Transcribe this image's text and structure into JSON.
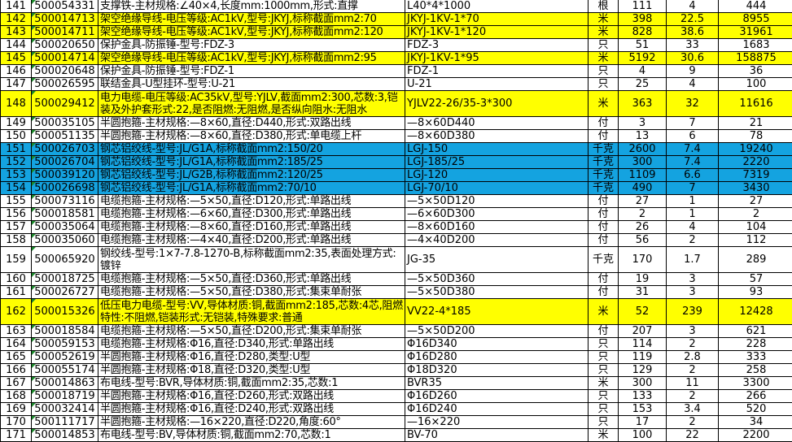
{
  "colors": {
    "yellow_highlight": "#ffff00",
    "blue_highlight": "#14a3e0"
  },
  "rows": [
    {
      "no": "141",
      "code": "500054331",
      "desc": "支撑铁-主材规格:∠40×4,长度mm:1000mm,形式:直撑",
      "spec": "L40*4*1000",
      "unit": "根",
      "qty": "111",
      "price": "4",
      "total": "444",
      "hl": ""
    },
    {
      "no": "142",
      "code": "500014713",
      "desc": "架空绝缘导线-电压等级:AC1kV,型号:JKYJ,标称截面mm2:70",
      "spec": "JKYJ-1KV-1*70",
      "unit": "米",
      "qty": "398",
      "price": "22.5",
      "total": "8955",
      "hl": "yellow"
    },
    {
      "no": "143",
      "code": "500014711",
      "desc": "架空绝缘导线-电压等级:AC1kV,型号:JKYJ,标称截面mm2:120",
      "spec": "JKYJ-1KV-1*120",
      "unit": "米",
      "qty": "828",
      "price": "38.6",
      "total": "31961",
      "hl": "yellow"
    },
    {
      "no": "144",
      "code": "500020650",
      "desc": "保护金具-防振锤-型号:FDZ-3",
      "spec": "FDZ-3",
      "unit": "只",
      "qty": "51",
      "price": "33",
      "total": "1683",
      "hl": ""
    },
    {
      "no": "145",
      "code": "500014714",
      "desc": "架空绝缘导线-电压等级:AC1kV,型号:JKYJ,标称截面mm2:95",
      "spec": "JKYJ-1KV-1*95",
      "unit": "米",
      "qty": "5192",
      "price": "30.6",
      "total": "158875",
      "hl": "yellow"
    },
    {
      "no": "146",
      "code": "500020648",
      "desc": "保护金具-防振锤-型号:FDZ-1",
      "spec": "FDZ-1",
      "unit": "只",
      "qty": "4",
      "price": "9",
      "total": "36",
      "hl": ""
    },
    {
      "no": "147",
      "code": "500026595",
      "desc": "联结金具-U型挂环-型号:U-21",
      "spec": "U-21",
      "unit": "只",
      "qty": "25",
      "price": "4",
      "total": "100",
      "hl": ""
    },
    {
      "no": "148",
      "code": "500029412",
      "desc": "电力电缆-电压等级:AC35kV,型号:YJLV,截面mm2:300,芯数:3,铠装及外护套形式:22,是否阻燃:无阻燃,是否纵向阻水:无阻水",
      "spec": "YJLV22-26/35-3*300",
      "unit": "米",
      "qty": "363",
      "price": "32",
      "total": "11616",
      "hl": "yellow",
      "tall": true
    },
    {
      "no": "149",
      "code": "500035105",
      "desc": "半圆抱箍-主材规格:—8×60,直径:D440,形式:双路出线",
      "spec": "—8×60D440",
      "unit": "付",
      "qty": "3",
      "price": "7",
      "total": "21",
      "hl": ""
    },
    {
      "no": "150",
      "code": "500051135",
      "desc": "半圆抱箍-主材规格:—8×60,直径:D380,形式:单电缆上杆",
      "spec": "—8×60D380",
      "unit": "付",
      "qty": "13",
      "price": "6",
      "total": "78",
      "hl": ""
    },
    {
      "no": "151",
      "code": "500026703",
      "desc": "钢芯铝绞线-型号:JL/G1A,标称截面mm2:150/20",
      "spec": "LGJ-150",
      "unit": "千克",
      "qty": "2600",
      "price": "7.4",
      "total": "19240",
      "hl": "blue"
    },
    {
      "no": "152",
      "code": "500026704",
      "desc": "钢芯铝绞线-型号:JL/G1A,标称截面mm2:185/25",
      "spec": "LGJ-185/25",
      "unit": "千克",
      "qty": "300",
      "price": "7.4",
      "total": "2220",
      "hl": "blue"
    },
    {
      "no": "153",
      "code": "500039120",
      "desc": "钢芯铝绞线-型号:JL/G2B,标称截面mm2:120/25",
      "spec": "LGJ-120",
      "unit": "千克",
      "qty": "1109",
      "price": "6.6",
      "total": "7319",
      "hl": "blue"
    },
    {
      "no": "154",
      "code": "500026698",
      "desc": "钢芯铝绞线-型号:JL/G1A,标称截面mm2:70/10",
      "spec": "LGJ-70/10",
      "unit": "千克",
      "qty": "490",
      "price": "7",
      "total": "3430",
      "hl": "blue"
    },
    {
      "no": "155",
      "code": "500073116",
      "desc": "电缆抱箍-主材规格:—5×50,直径:D120,形式:单路出线",
      "spec": "—5×50D120",
      "unit": "付",
      "qty": "27",
      "price": "1",
      "total": "27",
      "hl": ""
    },
    {
      "no": "156",
      "code": "500018581",
      "desc": "电缆抱箍-主材规格:—6×60,直径:D300,形式:单路出线",
      "spec": "—6×60D300",
      "unit": "付",
      "qty": "2",
      "price": "1",
      "total": "2",
      "hl": ""
    },
    {
      "no": "157",
      "code": "500035064",
      "desc": "电缆抱箍-主材规格:—8×60,直径:D160,形式:单路出线",
      "spec": "—8×60D160",
      "unit": "付",
      "qty": "26",
      "price": "4",
      "total": "104",
      "hl": ""
    },
    {
      "no": "158",
      "code": "500035060",
      "desc": "电缆抱箍-主材规格:—4×40,直径:D200,形式:单路出线",
      "spec": "—4×40D200",
      "unit": "付",
      "qty": "56",
      "price": "2",
      "total": "112",
      "hl": ""
    },
    {
      "no": "159",
      "code": "500065920",
      "desc": "钢绞线-型号:1×7-7.8-1270-B,标称截面mm2:35,表面处理方式:镀锌",
      "spec": "JG-35",
      "unit": "千克",
      "qty": "170",
      "price": "1.7",
      "total": "289",
      "hl": "",
      "tall": true
    },
    {
      "no": "160",
      "code": "500018725",
      "desc": "电缆抱箍-主材规格:—5×50,直径:D360,形式:单路出线",
      "spec": "—5×50D360",
      "unit": "付",
      "qty": "19",
      "price": "3",
      "total": "57",
      "hl": ""
    },
    {
      "no": "161",
      "code": "500026727",
      "desc": "电缆抱箍-主材规格:—5×50,直径:D380,形式:集束单耐张",
      "spec": "—5×50D380",
      "unit": "付",
      "qty": "31",
      "price": "3",
      "total": "93",
      "hl": ""
    },
    {
      "no": "162",
      "code": "500015326",
      "desc": "低压电力电缆-型号:VV,导体材质:铜,截面mm2:185,芯数:4芯,阻燃特性:不阻燃,铠装形式:无铠装,特殊要求:普通",
      "spec": "VV22-4*185",
      "unit": "米",
      "qty": "52",
      "price": "239",
      "total": "12428",
      "hl": "yellow",
      "tall": true
    },
    {
      "no": "163",
      "code": "500018584",
      "desc": "电缆抱箍-主材规格:—5×50,直径:D200,形式:集束单耐张",
      "spec": "—5×50D200",
      "unit": "付",
      "qty": "207",
      "price": "3",
      "total": "621",
      "hl": ""
    },
    {
      "no": "164",
      "code": "500059153",
      "desc": "电缆抱箍-主材规格:Φ16,直径:D340,形式:单路出线",
      "spec": "Φ16D340",
      "unit": "只",
      "qty": "114",
      "price": "2",
      "total": "228",
      "hl": ""
    },
    {
      "no": "165",
      "code": "500052619",
      "desc": "半圆抱箍-主材规格:Φ16,直径:D280,类型:U型",
      "spec": "Φ16D280",
      "unit": "只",
      "qty": "119",
      "price": "2.8",
      "total": "333",
      "hl": ""
    },
    {
      "no": "166",
      "code": "500055174",
      "desc": "半圆抱箍-主材规格:Φ18,直径:D320,类型:U型",
      "spec": "Φ18D320",
      "unit": "只",
      "qty": "129",
      "price": "2",
      "total": "258",
      "hl": ""
    },
    {
      "no": "167",
      "code": "500014863",
      "desc": "布电线-型号:BVR,导体材质:铜,截面mm2:35,芯数:1",
      "spec": "BVR35",
      "unit": "米",
      "qty": "300",
      "price": "11",
      "total": "3300",
      "hl": ""
    },
    {
      "no": "168",
      "code": "500018719",
      "desc": "半圆抱箍-主材规格:Φ16,直径:D260,形式:双路出线",
      "spec": "Φ16D260",
      "unit": "只",
      "qty": "133",
      "price": "2",
      "total": "266",
      "hl": ""
    },
    {
      "no": "169",
      "code": "500032414",
      "desc": "半圆抱箍-主材规格:Φ16,直径:D240,形式:双路出线",
      "spec": "Φ16D240",
      "unit": "只",
      "qty": "153",
      "price": "3.4",
      "total": "520",
      "hl": ""
    },
    {
      "no": "170",
      "code": "500111717",
      "desc": "半圆抱箍-主材规格:—16×220,直径:D220,角度:60°",
      "spec": "—16×220",
      "unit": "只",
      "qty": "17",
      "price": "2",
      "total": "34",
      "hl": ""
    },
    {
      "no": "171",
      "code": "500014853",
      "desc": "布电线-型号:BV,导体材质:铜,截面mm2:70,芯数:1",
      "spec": "BV-70",
      "unit": "米",
      "qty": "100",
      "price": "22",
      "total": "2200",
      "hl": ""
    }
  ]
}
